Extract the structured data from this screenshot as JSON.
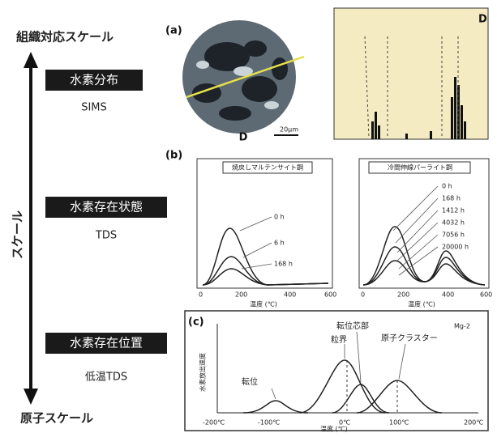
{
  "scale": {
    "top": "組織対応スケール",
    "axis": "スケール",
    "bottom": "原子スケール"
  },
  "methods": [
    {
      "title": "水素分布",
      "technique": "SIMS"
    },
    {
      "title": "水素存在状態",
      "technique": "TDS"
    },
    {
      "title": "水素存在位置",
      "technique": "低温TDS"
    }
  ],
  "panels": {
    "a": {
      "label": "(a)",
      "marker": "D",
      "scalebar": "20μm"
    },
    "b": {
      "label": "(b)",
      "xlabel": "温度 (℃)",
      "ticks": [
        "0",
        "200",
        "400",
        "600"
      ],
      "left": {
        "title": "焼戻しマルテンサイト鋼",
        "series": [
          "0 h",
          "6 h",
          "168 h"
        ]
      },
      "right": {
        "title": "冷間伸線パーライト鋼",
        "series": [
          "0 h",
          "168 h",
          "1412 h",
          "4032 h",
          "7056 h",
          "20000 h"
        ]
      }
    },
    "c": {
      "label": "(c)",
      "peaks": [
        "転位",
        "粒界",
        "転位芯部",
        "原子クラスター"
      ],
      "sample": "Mg-2",
      "ylabel": "水素放出速度",
      "xlabel": "温度 (℃)",
      "ticks": [
        "-200℃",
        "-100℃",
        "0℃",
        "100℃",
        "200℃"
      ]
    }
  }
}
